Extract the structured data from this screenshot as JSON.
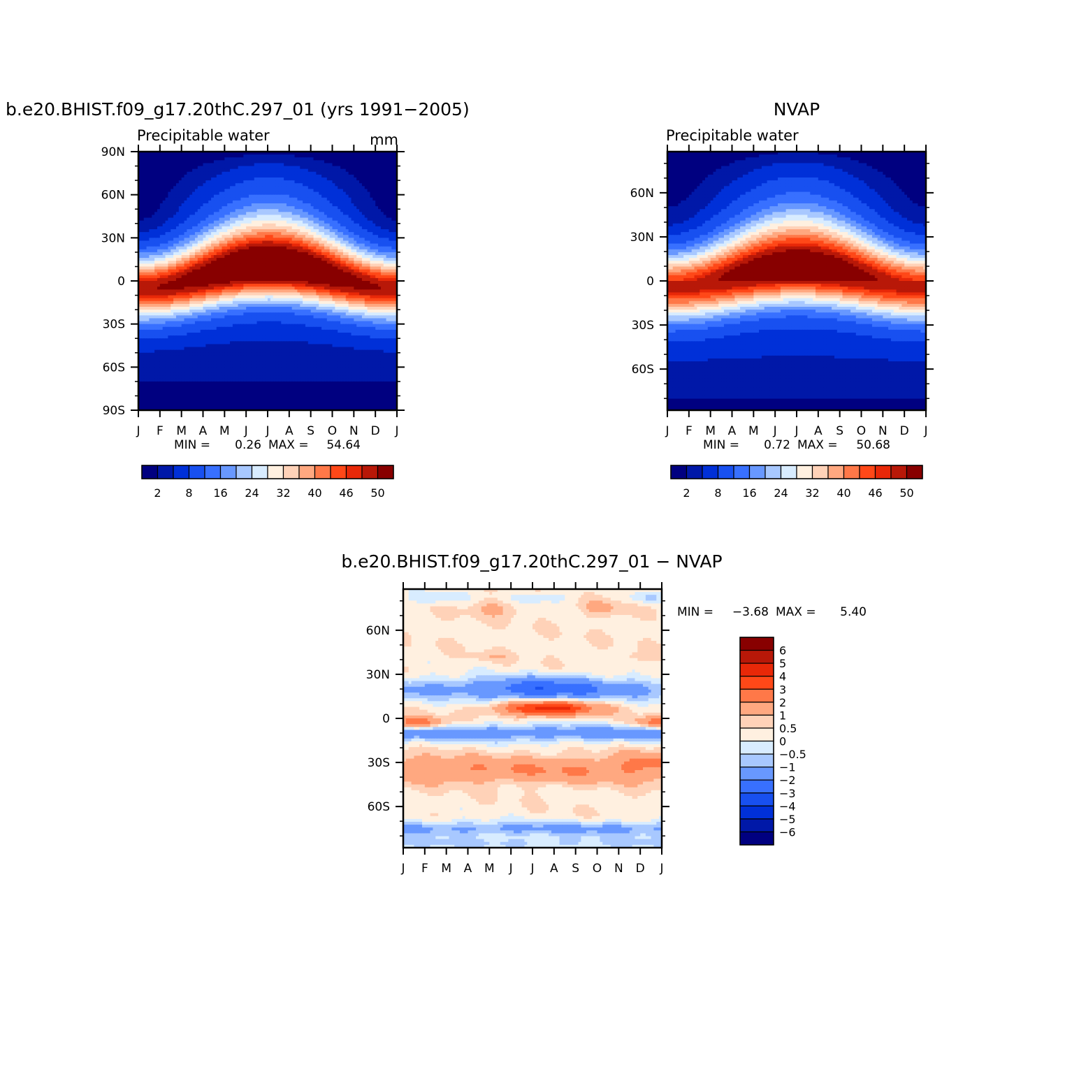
{
  "palette": {
    "main": [
      "#000080",
      "#0018a8",
      "#0030d8",
      "#1850f0",
      "#3870ff",
      "#6898ff",
      "#a8c8ff",
      "#d8ecff",
      "#fff0e0",
      "#ffd2b8",
      "#ffa880",
      "#ff7848",
      "#ff4818",
      "#e82808",
      "#b81808",
      "#880000"
    ],
    "diff": [
      "#000080",
      "#0018a8",
      "#0030d8",
      "#1850f0",
      "#3870ff",
      "#6898ff",
      "#a8c8ff",
      "#d8ecff",
      "#fff0e0",
      "#ffd2b8",
      "#ffa880",
      "#ff7848",
      "#ff4818",
      "#e82808",
      "#b81808",
      "#880000"
    ]
  },
  "chart_data": [
    {
      "id": "model",
      "type": "heatmap",
      "title": "b.e20.BHIST.f09_g17.20thC.297_01 (yrs 1991-2005)",
      "subtitle": "Precipitable water",
      "units": "mm",
      "xlabel": "",
      "ylabel": "",
      "x_ticks": [
        "J",
        "F",
        "M",
        "A",
        "M",
        "J",
        "J",
        "A",
        "S",
        "O",
        "N",
        "D",
        "J"
      ],
      "y_ticks": [
        {
          "value": 90,
          "label": "90N"
        },
        {
          "value": 60,
          "label": "60N"
        },
        {
          "value": 30,
          "label": "30N"
        },
        {
          "value": 0,
          "label": "0"
        },
        {
          "value": -30,
          "label": "30S"
        },
        {
          "value": -60,
          "label": "60S"
        },
        {
          "value": -90,
          "label": "90S"
        }
      ],
      "ylim": [
        -90,
        90
      ],
      "stats": {
        "min_label": "MIN =",
        "min": "0.26",
        "max_label": "MAX =",
        "max": "54.64"
      },
      "colorbar_labels": [
        "2",
        "8",
        "16",
        "24",
        "32",
        "40",
        "46",
        "50"
      ],
      "field": {
        "base_max": 53,
        "itcz_lat_jan": -5,
        "itcz_lat_jul": 8,
        "itcz_width": 20,
        "south_min": 0.3,
        "north_min_jan": 1.5,
        "north_min_jul": 12,
        "south_amp": 3
      }
    },
    {
      "id": "obs",
      "type": "heatmap",
      "title": "NVAP",
      "subtitle": "Precipitable water",
      "xlabel": "",
      "ylabel": "",
      "x_ticks": [
        "J",
        "F",
        "M",
        "A",
        "M",
        "J",
        "J",
        "A",
        "S",
        "O",
        "N",
        "D",
        "J"
      ],
      "y_ticks": [
        {
          "value": 60,
          "label": "60N"
        },
        {
          "value": 30,
          "label": "30N"
        },
        {
          "value": 0,
          "label": "0"
        },
        {
          "value": -30,
          "label": "30S"
        },
        {
          "value": -60,
          "label": "60S"
        }
      ],
      "ylim": [
        -88,
        88
      ],
      "stats": {
        "min_label": "MIN =",
        "min": "0.72",
        "max_label": "MAX =",
        "max": "50.68"
      },
      "colorbar_labels": [
        "2",
        "8",
        "16",
        "24",
        "32",
        "40",
        "46",
        "50"
      ],
      "field": {
        "base_max": 49.5,
        "itcz_lat_jan": -4,
        "itcz_lat_jul": 7,
        "itcz_width": 21,
        "south_min": 0.7,
        "north_min_jan": 2,
        "north_min_jul": 11,
        "south_amp": 3
      }
    },
    {
      "id": "diff",
      "type": "heatmap",
      "title": "b.e20.BHIST.f09_g17.20thC.297_01 - NVAP",
      "xlabel": "",
      "ylabel": "",
      "x_ticks": [
        "J",
        "F",
        "M",
        "A",
        "M",
        "J",
        "J",
        "A",
        "S",
        "O",
        "N",
        "D",
        "J"
      ],
      "y_ticks": [
        {
          "value": 60,
          "label": "60N"
        },
        {
          "value": 30,
          "label": "30N"
        },
        {
          "value": 0,
          "label": "0"
        },
        {
          "value": -30,
          "label": "30S"
        },
        {
          "value": -60,
          "label": "60S"
        }
      ],
      "ylim": [
        -88,
        88
      ],
      "stats": {
        "min_label": "MIN =",
        "min": "-3.68",
        "max_label": "MAX =",
        "max": "5.40"
      },
      "colorbar_levels": [
        6,
        5,
        4,
        3,
        2,
        1,
        0.5,
        0,
        -0.5,
        -1,
        -2,
        -3,
        -4,
        -5,
        -6
      ],
      "colorbar_labels": [
        "6",
        "5",
        "4",
        "3",
        "2",
        "1",
        "0.5",
        "0",
        "-0.5",
        "-1",
        "-2",
        "-3",
        "-4",
        "-5",
        "-6"
      ]
    }
  ]
}
